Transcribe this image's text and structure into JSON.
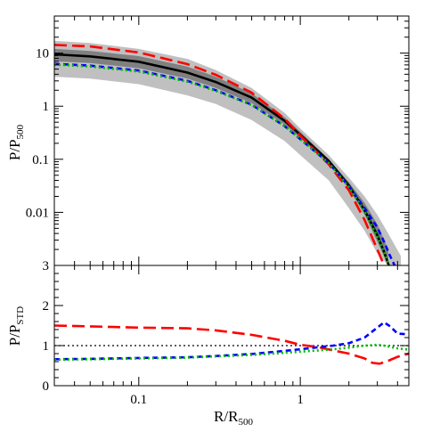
{
  "chart_data": [
    {
      "type": "line",
      "panel": "top",
      "title": "",
      "xlabel": "",
      "ylabel": "P/P",
      "ylabel_sub": "500",
      "xscale": "log",
      "yscale": "log",
      "xlim": [
        0.03,
        4.7
      ],
      "ylim": [
        0.001,
        50
      ],
      "yticks": [
        0.01,
        0.1,
        1,
        10
      ],
      "ytick_labels": [
        "0.01",
        "0.1",
        "1",
        "10"
      ],
      "bands": [
        {
          "name": "outer",
          "color": "#c0c0c0",
          "x": [
            0.03,
            0.05,
            0.1,
            0.2,
            0.3,
            0.5,
            0.8,
            1.0,
            1.5,
            2.0,
            2.5,
            3.0,
            3.5,
            4.2
          ],
          "lower": [
            3.6,
            3.3,
            2.6,
            1.6,
            1.1,
            0.55,
            0.22,
            0.12,
            0.04,
            0.012,
            0.0045,
            0.0017,
            0.001,
            0.001
          ],
          "upper": [
            17,
            15.5,
            12,
            7.8,
            4.8,
            2.2,
            0.75,
            0.38,
            0.12,
            0.045,
            0.02,
            0.009,
            0.004,
            0.0015
          ]
        },
        {
          "name": "inner",
          "color": "#808080",
          "x": [
            0.03,
            0.05,
            0.1,
            0.2,
            0.3,
            0.5,
            0.8,
            1.0,
            1.5,
            2.0,
            2.5,
            3.0,
            3.5
          ],
          "lower": [
            7.0,
            6.5,
            5.2,
            3.3,
            2.2,
            1.15,
            0.45,
            0.25,
            0.085,
            0.028,
            0.009,
            0.0028,
            0.001
          ],
          "upper": [
            12,
            11,
            8.8,
            5.6,
            3.6,
            1.75,
            0.62,
            0.33,
            0.1,
            0.037,
            0.015,
            0.006,
            0.002
          ]
        }
      ],
      "series": [
        {
          "color": "#000000",
          "dash": "solid",
          "x": [
            0.03,
            0.05,
            0.1,
            0.2,
            0.3,
            0.5,
            0.8,
            1.0,
            1.5,
            2.0,
            2.5,
            3.0,
            3.3,
            3.6
          ],
          "y": [
            9.5,
            8.7,
            6.9,
            4.3,
            2.85,
            1.45,
            0.53,
            0.29,
            0.093,
            0.032,
            0.011,
            0.0037,
            0.0018,
            0.00085
          ]
        },
        {
          "color": "#ff0000",
          "dash": "long",
          "x": [
            0.03,
            0.05,
            0.1,
            0.2,
            0.3,
            0.5,
            0.8,
            1.0,
            1.5,
            2.0,
            2.5,
            3.0,
            3.3
          ],
          "y": [
            14.3,
            13.4,
            10.3,
            6.2,
            3.9,
            1.8,
            0.58,
            0.28,
            0.08,
            0.026,
            0.0072,
            0.002,
            0.001
          ]
        },
        {
          "color": "#0000ff",
          "dash": "short",
          "x": [
            0.03,
            0.05,
            0.1,
            0.2,
            0.3,
            0.5,
            0.8,
            1.0,
            1.5,
            2.0,
            2.5,
            3.0,
            3.3,
            3.6,
            3.9
          ],
          "y": [
            6.3,
            5.8,
            4.7,
            3.0,
            2.0,
            1.07,
            0.42,
            0.24,
            0.085,
            0.031,
            0.012,
            0.0052,
            0.0028,
            0.0015,
            0.0009
          ]
        },
        {
          "color": "#00bb00",
          "dash": "dotted",
          "x": [
            0.03,
            0.05,
            0.1,
            0.2,
            0.3,
            0.5,
            0.8,
            1.0,
            1.5,
            2.0,
            2.5,
            3.0,
            3.3,
            3.6
          ],
          "y": [
            6.1,
            5.6,
            4.5,
            2.9,
            1.95,
            1.05,
            0.42,
            0.24,
            0.085,
            0.03,
            0.0105,
            0.0035,
            0.0018,
            0.0009
          ]
        }
      ]
    },
    {
      "type": "line",
      "panel": "bottom",
      "title": "",
      "xlabel": "R/R",
      "xlabel_sub": "500",
      "ylabel": "P/P",
      "ylabel_sub": "STD",
      "xscale": "log",
      "yscale": "linear",
      "xlim": [
        0.03,
        4.7
      ],
      "ylim": [
        0,
        3
      ],
      "xticks": [
        0.1,
        1
      ],
      "xtick_labels": [
        "0.1",
        "1"
      ],
      "yticks": [
        0,
        1,
        2,
        3
      ],
      "ytick_labels": [
        "0",
        "1",
        "2",
        "3"
      ],
      "reference": {
        "y": 1,
        "color": "#000000",
        "dash": "dotted"
      },
      "series": [
        {
          "color": "#ff0000",
          "dash": "long",
          "x": [
            0.03,
            0.05,
            0.1,
            0.2,
            0.3,
            0.5,
            0.8,
            1.0,
            1.3,
            1.6,
            2.0,
            2.5,
            2.8,
            3.1,
            3.5,
            4.0,
            4.7
          ],
          "y": [
            1.5,
            1.48,
            1.45,
            1.43,
            1.38,
            1.27,
            1.12,
            1.02,
            0.96,
            0.88,
            0.8,
            0.68,
            0.57,
            0.55,
            0.62,
            0.72,
            0.8
          ]
        },
        {
          "color": "#0000ff",
          "dash": "short",
          "x": [
            0.03,
            0.05,
            0.1,
            0.2,
            0.3,
            0.5,
            0.8,
            1.0,
            1.3,
            1.6,
            2.0,
            2.5,
            3.0,
            3.3,
            3.6,
            4.0,
            4.7
          ],
          "y": [
            0.66,
            0.67,
            0.69,
            0.71,
            0.74,
            0.79,
            0.87,
            0.91,
            0.96,
            1.0,
            1.06,
            1.2,
            1.45,
            1.58,
            1.48,
            1.3,
            1.28
          ]
        },
        {
          "color": "#00bb00",
          "dash": "dotted",
          "x": [
            0.03,
            0.05,
            0.1,
            0.2,
            0.3,
            0.5,
            0.8,
            1.0,
            1.3,
            1.6,
            2.0,
            2.5,
            3.0,
            3.3,
            3.6,
            4.0,
            4.7
          ],
          "y": [
            0.65,
            0.66,
            0.68,
            0.7,
            0.73,
            0.77,
            0.82,
            0.85,
            0.88,
            0.91,
            0.95,
            1.0,
            1.02,
            1.0,
            0.97,
            0.93,
            0.9
          ]
        }
      ]
    }
  ]
}
